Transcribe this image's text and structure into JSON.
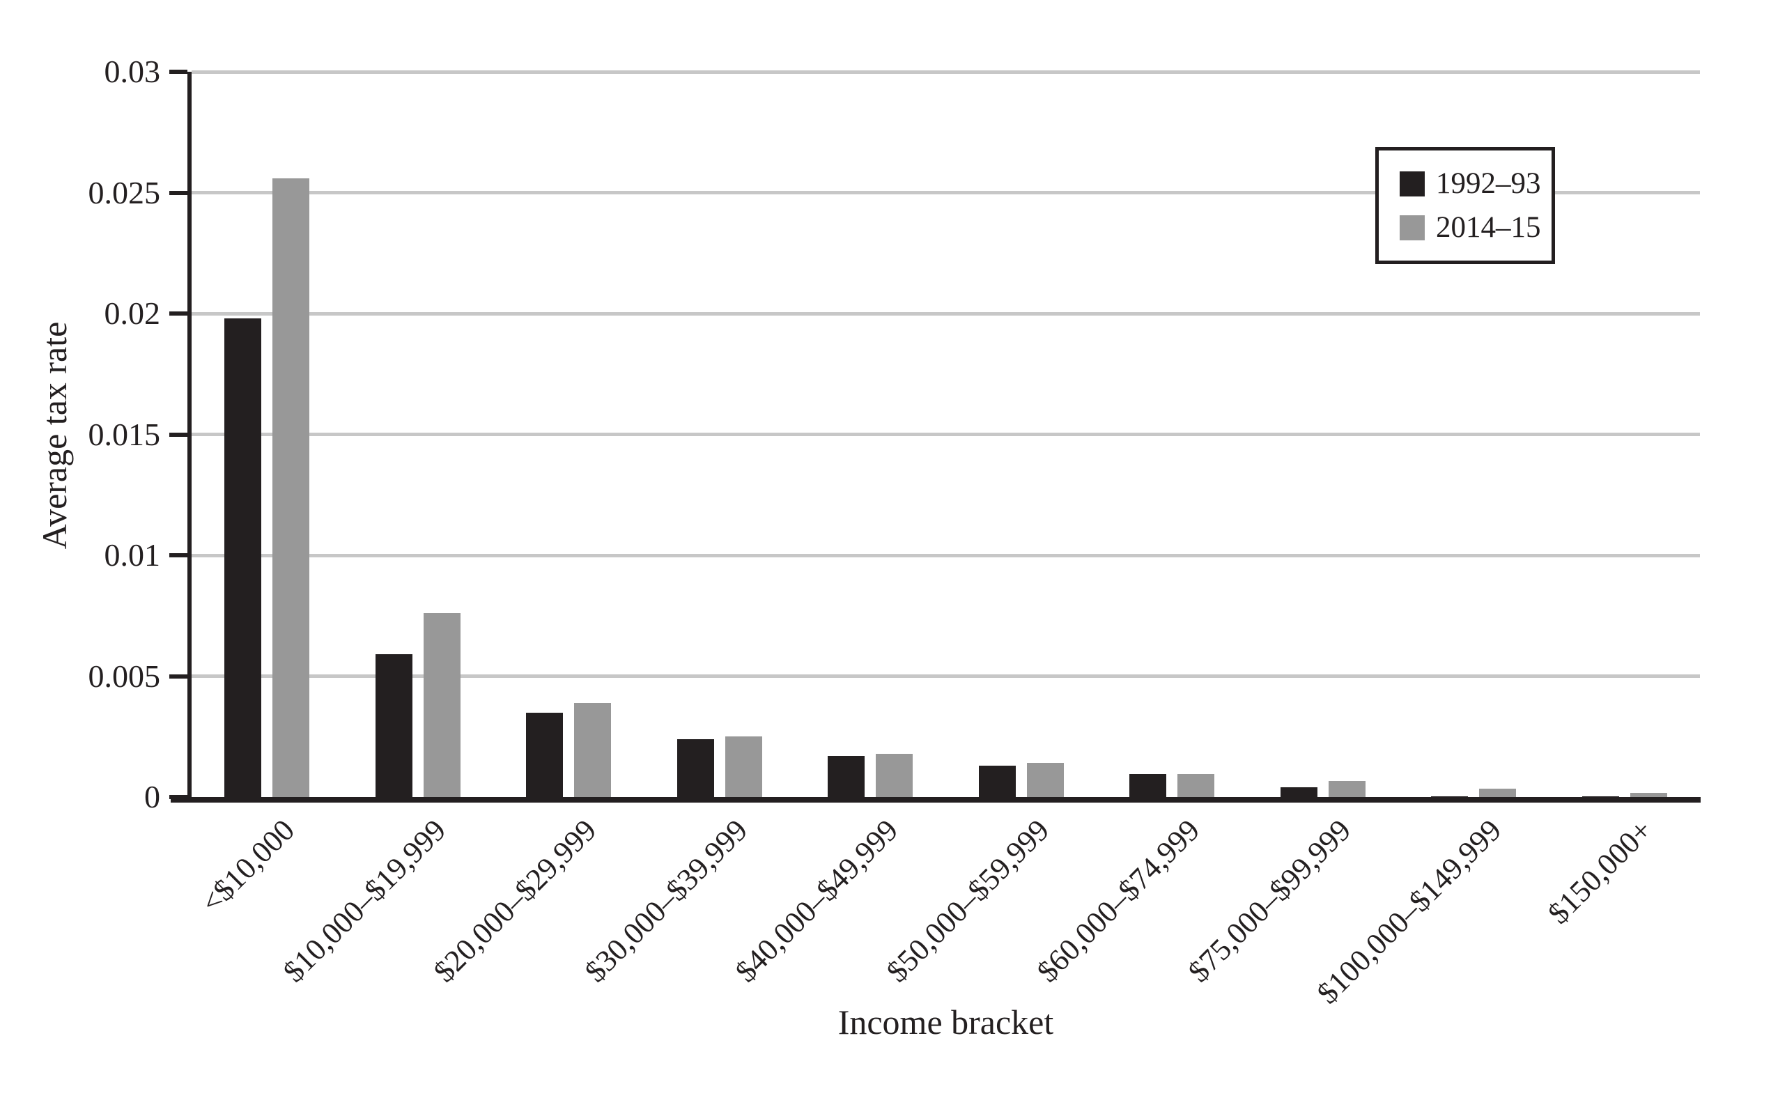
{
  "chart_data": {
    "type": "bar",
    "title": "",
    "xlabel": "Income bracket",
    "ylabel": "Average tax rate",
    "ylim": [
      0,
      0.03
    ],
    "yticks": [
      0,
      0.005,
      0.01,
      0.015,
      0.02,
      0.025,
      0.03
    ],
    "ytick_labels": [
      "0",
      "0.005",
      "0.01",
      "0.015",
      "0.02",
      "0.025",
      "0.03"
    ],
    "grid": "horizontal gridlines at every y tick, light gray",
    "legend_position": "upper right, boxed",
    "categories": [
      "<$10,000",
      "$10,000–$19,999",
      "$20,000–$29,999",
      "$30,000–$39,999",
      "$40,000–$49,999",
      "$50,000–$59,999",
      "$60,000–$74,999",
      "$75,000–$99,999",
      "$100,000–$149,999",
      "$150,000+"
    ],
    "series": [
      {
        "name": "1992–93",
        "color": "#231f20",
        "values": [
          0.0198,
          0.0059,
          0.0035,
          0.0024,
          0.0017,
          0.0013,
          0.00095,
          0.0004,
          3e-05,
          2e-05
        ]
      },
      {
        "name": "2014–15",
        "color": "#989898",
        "values": [
          0.0256,
          0.0076,
          0.0039,
          0.0025,
          0.0018,
          0.0014,
          0.00095,
          0.00065,
          0.00035,
          0.00017
        ]
      }
    ],
    "colors": {
      "axis": "#231f20",
      "gridline": "#c7c7c7",
      "background": "#ffffff"
    }
  }
}
